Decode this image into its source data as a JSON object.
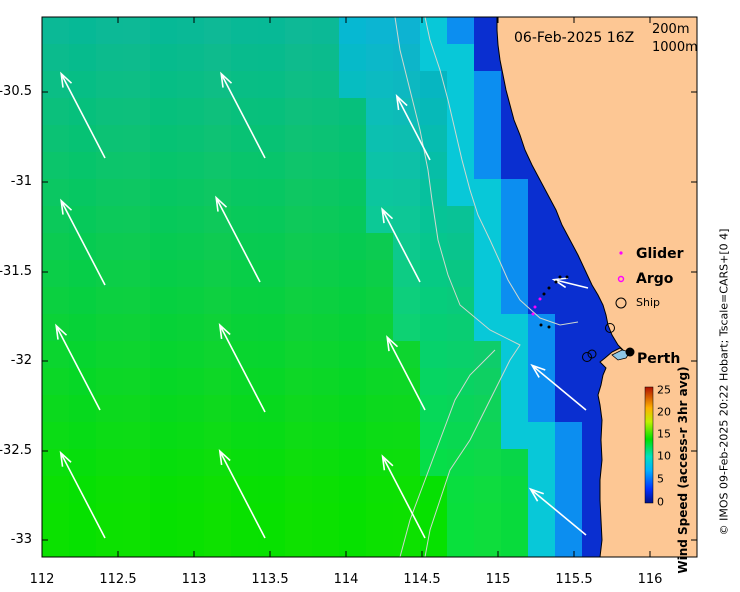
{
  "map": {
    "timestamp": "06-Feb-2025 16Z",
    "depth_contours": [
      "200m",
      "1000m"
    ],
    "x_ticks": [
      "112",
      "112.5",
      "113",
      "113.5",
      "114",
      "114.5",
      "115",
      "115.5",
      "116"
    ],
    "y_ticks": [
      "-30.5",
      "-31",
      "-31.5",
      "-32",
      "-32.5",
      "-33"
    ],
    "lon_range": [
      112,
      116.3
    ],
    "lat_range": [
      -33.1,
      -30.1
    ],
    "legend": {
      "glider": "Glider",
      "argo": "Argo",
      "ship": "Ship"
    },
    "city": "Perth",
    "colorbar": {
      "title": "Wind Speed (access-r 3hr avg)",
      "ticks": [
        "25",
        "20",
        "15",
        "10",
        "5",
        "0"
      ],
      "range": [
        0,
        25
      ]
    },
    "credit": "© IMOS 09-Feb-2025 20:22 Hobart; Tscale=CARS+[0 4]"
  },
  "colors": {
    "land": "#fdc794",
    "ocean_low": "#0a1fbf",
    "ocean_high": "#0ad40a",
    "glider": "#ff00ff",
    "argo": "#ff00ff",
    "vector": "#ffffff"
  }
}
